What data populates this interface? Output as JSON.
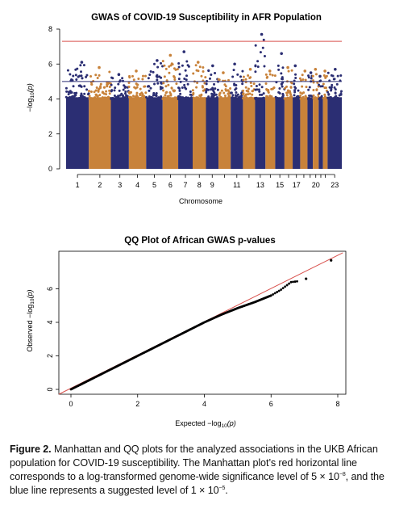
{
  "chart_data": [
    {
      "type": "scatter",
      "subtype": "manhattan",
      "title": "GWAS of COVID-19 Susceptibility in AFR Population",
      "xlabel": "Chromosome",
      "ylabel": "−log10(p)",
      "ylabel_main": "−log",
      "ylabel_sub": "10",
      "ylabel_tail": "(p)",
      "ylim": [
        0,
        8
      ],
      "yticks": [
        "0",
        "2",
        "4",
        "6",
        "8"
      ],
      "xtick_labels": [
        "1",
        "2",
        "3",
        "4",
        "5",
        "6",
        "7",
        "8",
        "9",
        "11",
        "13",
        "15",
        "17",
        "20",
        "23"
      ],
      "chromosome_colors": [
        "#2b2e73",
        "#c8823a"
      ],
      "significance_lines": [
        {
          "value": 7.3,
          "color": "#d9534f"
        },
        {
          "value": 5.0,
          "color": "#2b2e73"
        }
      ],
      "chromosomes": [
        {
          "chr": "1",
          "peak": 6.1
        },
        {
          "chr": "2",
          "peak": 5.8
        },
        {
          "chr": "3",
          "peak": 5.4
        },
        {
          "chr": "4",
          "peak": 5.6
        },
        {
          "chr": "5",
          "peak": 6.2
        },
        {
          "chr": "6",
          "peak": 6.5
        },
        {
          "chr": "7",
          "peak": 6.7
        },
        {
          "chr": "8",
          "peak": 6.1
        },
        {
          "chr": "9",
          "peak": 5.9
        },
        {
          "chr": "10",
          "peak": 5.5
        },
        {
          "chr": "11",
          "peak": 6.0
        },
        {
          "chr": "12",
          "peak": 5.7
        },
        {
          "chr": "13",
          "peak": 7.7
        },
        {
          "chr": "14",
          "peak": 5.6
        },
        {
          "chr": "15",
          "peak": 6.6
        },
        {
          "chr": "16",
          "peak": 5.8
        },
        {
          "chr": "17",
          "peak": 5.9
        },
        {
          "chr": "18",
          "peak": 5.6
        },
        {
          "chr": "19",
          "peak": 5.5
        },
        {
          "chr": "20",
          "peak": 5.7
        },
        {
          "chr": "21",
          "peak": 5.3
        },
        {
          "chr": "22",
          "peak": 5.6
        },
        {
          "chr": "23",
          "peak": 5.7
        }
      ]
    },
    {
      "type": "scatter",
      "subtype": "qq",
      "title": "QQ Plot of African GWAS p-values",
      "xlabel": "Expected",
      "ylabel": "Observed",
      "log_main": "−log",
      "log_sub": "10",
      "log_tail": "(p)",
      "xlim": [
        0,
        8
      ],
      "ylim": [
        0,
        8
      ],
      "xticks": [
        "0",
        "2",
        "4",
        "6",
        "8"
      ],
      "yticks": [
        "0",
        "2",
        "4",
        "6"
      ],
      "reference_line_color": "#d9534f",
      "points": [
        [
          0,
          0
        ],
        [
          1,
          1
        ],
        [
          2,
          2
        ],
        [
          3,
          3
        ],
        [
          4,
          4
        ],
        [
          4.5,
          4.45
        ],
        [
          5.0,
          4.85
        ],
        [
          5.5,
          5.2
        ],
        [
          6.0,
          5.6
        ],
        [
          6.3,
          5.95
        ],
        [
          6.6,
          6.4
        ],
        [
          6.8,
          6.45
        ],
        [
          7.05,
          6.6
        ],
        [
          7.8,
          7.7
        ]
      ]
    }
  ],
  "caption": {
    "label": "Figure 2.",
    "text1": " Manhattan and QQ plots for the analyzed associations in the UKB African population for COVID-19 susceptibility. The Manhattan plot’s red horizontal line corresponds to a log-transformed genome-wide significance level of 5 × 10",
    "exp1": "−8",
    "text2": ", and the blue line represents a suggested level of 1 × 10",
    "exp2": "−5",
    "text3": "."
  }
}
